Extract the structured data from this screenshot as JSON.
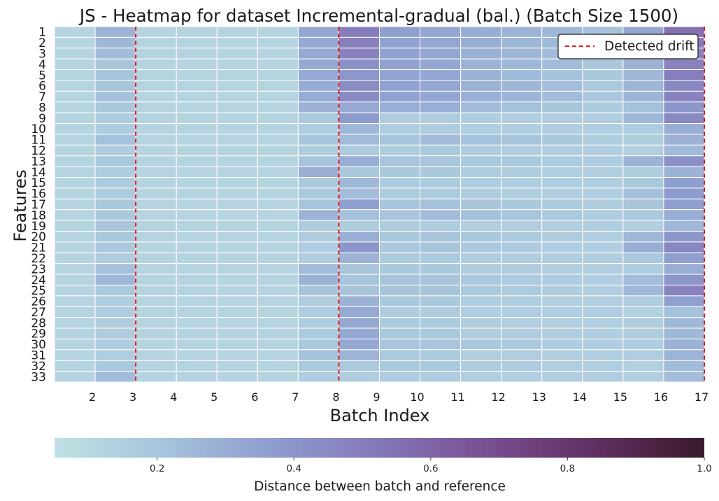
{
  "chart_data": {
    "type": "heatmap",
    "title": "JS - Heatmap for dataset Incremental-gradual (bal.) (Batch Size 1500)",
    "xlabel": "Batch Index",
    "ylabel": "Features",
    "x_tick_labels": [
      "2",
      "3",
      "4",
      "5",
      "6",
      "7",
      "8",
      "9",
      "10",
      "11",
      "12",
      "13",
      "14",
      "15",
      "16",
      "17"
    ],
    "y_tick_labels": [
      "1",
      "2",
      "3",
      "4",
      "5",
      "6",
      "7",
      "8",
      "9",
      "10",
      "11",
      "12",
      "13",
      "14",
      "15",
      "16",
      "17",
      "18",
      "19",
      "20",
      "21",
      "22",
      "23",
      "24",
      "25",
      "26",
      "27",
      "28",
      "29",
      "30",
      "31",
      "32",
      "33"
    ],
    "colorbar": {
      "label": "Distance between batch and reference",
      "min": 0.05,
      "max": 1.0,
      "ticks": [
        "0.2",
        "0.4",
        "0.6",
        "0.8",
        "1.0"
      ],
      "tick_values": [
        0.2,
        0.4,
        0.6,
        0.8,
        1.0
      ],
      "colors": [
        "#c0e0e3",
        "#a7c4dc",
        "#8e9ecf",
        "#8577b8",
        "#784f91",
        "#602f62",
        "#3a1a2c"
      ]
    },
    "drift_lines_batch_index": [
      2.5,
      7.5,
      16.5
    ],
    "legend": {
      "entries": [
        "Detected drift"
      ],
      "placement": "upper right",
      "line_color": "#e31a1c"
    },
    "cell_columns_batch_index": [
      1,
      2,
      3,
      4,
      5,
      6,
      7,
      8,
      9,
      10,
      11,
      12,
      13,
      14,
      15,
      16
    ],
    "values": [
      [
        0.12,
        0.28,
        0.12,
        0.12,
        0.12,
        0.12,
        0.33,
        0.5,
        0.36,
        0.33,
        0.3,
        0.28,
        0.26,
        0.22,
        0.33,
        0.55
      ],
      [
        0.12,
        0.26,
        0.12,
        0.12,
        0.12,
        0.12,
        0.32,
        0.49,
        0.35,
        0.33,
        0.3,
        0.27,
        0.25,
        0.21,
        0.32,
        0.5
      ],
      [
        0.12,
        0.24,
        0.12,
        0.12,
        0.12,
        0.12,
        0.32,
        0.48,
        0.35,
        0.33,
        0.29,
        0.27,
        0.24,
        0.2,
        0.3,
        0.48
      ],
      [
        0.12,
        0.2,
        0.12,
        0.12,
        0.12,
        0.12,
        0.32,
        0.42,
        0.35,
        0.33,
        0.28,
        0.26,
        0.24,
        0.19,
        0.28,
        0.48
      ],
      [
        0.12,
        0.2,
        0.12,
        0.12,
        0.12,
        0.12,
        0.32,
        0.4,
        0.34,
        0.33,
        0.28,
        0.25,
        0.22,
        0.18,
        0.26,
        0.5
      ],
      [
        0.12,
        0.2,
        0.12,
        0.12,
        0.12,
        0.12,
        0.31,
        0.44,
        0.35,
        0.33,
        0.28,
        0.26,
        0.23,
        0.18,
        0.27,
        0.46
      ],
      [
        0.12,
        0.22,
        0.12,
        0.12,
        0.12,
        0.12,
        0.31,
        0.45,
        0.35,
        0.33,
        0.29,
        0.27,
        0.24,
        0.19,
        0.27,
        0.48
      ],
      [
        0.12,
        0.18,
        0.12,
        0.12,
        0.12,
        0.12,
        0.28,
        0.32,
        0.3,
        0.3,
        0.24,
        0.22,
        0.2,
        0.17,
        0.22,
        0.4
      ],
      [
        0.12,
        0.16,
        0.12,
        0.12,
        0.12,
        0.12,
        0.18,
        0.38,
        0.16,
        0.16,
        0.15,
        0.15,
        0.15,
        0.15,
        0.26,
        0.45
      ],
      [
        0.12,
        0.16,
        0.12,
        0.12,
        0.12,
        0.12,
        0.16,
        0.26,
        0.16,
        0.16,
        0.15,
        0.15,
        0.15,
        0.15,
        0.16,
        0.3
      ],
      [
        0.12,
        0.22,
        0.12,
        0.12,
        0.12,
        0.12,
        0.2,
        0.24,
        0.2,
        0.24,
        0.22,
        0.2,
        0.18,
        0.16,
        0.16,
        0.28
      ],
      [
        0.12,
        0.16,
        0.12,
        0.12,
        0.12,
        0.12,
        0.16,
        0.17,
        0.16,
        0.18,
        0.16,
        0.15,
        0.15,
        0.15,
        0.14,
        0.25
      ],
      [
        0.12,
        0.18,
        0.12,
        0.12,
        0.12,
        0.12,
        0.2,
        0.3,
        0.2,
        0.2,
        0.18,
        0.18,
        0.17,
        0.16,
        0.28,
        0.42
      ],
      [
        0.12,
        0.16,
        0.12,
        0.12,
        0.12,
        0.12,
        0.3,
        0.18,
        0.18,
        0.18,
        0.16,
        0.16,
        0.15,
        0.15,
        0.16,
        0.28
      ],
      [
        0.12,
        0.17,
        0.12,
        0.12,
        0.12,
        0.12,
        0.18,
        0.26,
        0.17,
        0.17,
        0.16,
        0.15,
        0.15,
        0.15,
        0.18,
        0.36
      ],
      [
        0.12,
        0.17,
        0.12,
        0.12,
        0.12,
        0.12,
        0.18,
        0.24,
        0.17,
        0.17,
        0.16,
        0.15,
        0.15,
        0.15,
        0.22,
        0.38
      ],
      [
        0.12,
        0.18,
        0.12,
        0.12,
        0.12,
        0.12,
        0.2,
        0.36,
        0.2,
        0.22,
        0.2,
        0.18,
        0.17,
        0.16,
        0.2,
        0.36
      ],
      [
        0.12,
        0.18,
        0.12,
        0.12,
        0.12,
        0.12,
        0.28,
        0.22,
        0.2,
        0.24,
        0.22,
        0.2,
        0.18,
        0.16,
        0.18,
        0.3
      ],
      [
        0.12,
        0.2,
        0.12,
        0.12,
        0.12,
        0.12,
        0.16,
        0.16,
        0.16,
        0.16,
        0.15,
        0.15,
        0.15,
        0.15,
        0.14,
        0.26
      ],
      [
        0.12,
        0.18,
        0.12,
        0.12,
        0.12,
        0.12,
        0.16,
        0.3,
        0.18,
        0.2,
        0.18,
        0.17,
        0.16,
        0.15,
        0.26,
        0.4
      ],
      [
        0.12,
        0.18,
        0.12,
        0.12,
        0.12,
        0.12,
        0.16,
        0.4,
        0.18,
        0.2,
        0.18,
        0.17,
        0.16,
        0.15,
        0.3,
        0.46
      ],
      [
        0.12,
        0.16,
        0.12,
        0.12,
        0.12,
        0.12,
        0.16,
        0.28,
        0.17,
        0.17,
        0.16,
        0.15,
        0.15,
        0.15,
        0.18,
        0.36
      ],
      [
        0.12,
        0.22,
        0.12,
        0.12,
        0.12,
        0.12,
        0.24,
        0.2,
        0.18,
        0.18,
        0.16,
        0.16,
        0.15,
        0.15,
        0.16,
        0.3
      ],
      [
        0.12,
        0.26,
        0.12,
        0.12,
        0.12,
        0.12,
        0.28,
        0.2,
        0.2,
        0.2,
        0.18,
        0.17,
        0.16,
        0.15,
        0.24,
        0.4
      ],
      [
        0.12,
        0.18,
        0.12,
        0.12,
        0.12,
        0.12,
        0.2,
        0.2,
        0.2,
        0.2,
        0.18,
        0.17,
        0.16,
        0.15,
        0.26,
        0.48
      ],
      [
        0.12,
        0.16,
        0.12,
        0.12,
        0.12,
        0.12,
        0.16,
        0.28,
        0.18,
        0.18,
        0.16,
        0.16,
        0.15,
        0.15,
        0.16,
        0.36
      ],
      [
        0.12,
        0.16,
        0.12,
        0.12,
        0.12,
        0.12,
        0.16,
        0.32,
        0.16,
        0.16,
        0.15,
        0.15,
        0.15,
        0.15,
        0.14,
        0.22
      ],
      [
        0.12,
        0.16,
        0.12,
        0.12,
        0.12,
        0.12,
        0.16,
        0.32,
        0.17,
        0.17,
        0.16,
        0.15,
        0.15,
        0.15,
        0.16,
        0.26
      ],
      [
        0.12,
        0.16,
        0.12,
        0.12,
        0.12,
        0.12,
        0.17,
        0.32,
        0.18,
        0.18,
        0.16,
        0.16,
        0.15,
        0.15,
        0.16,
        0.26
      ],
      [
        0.12,
        0.16,
        0.12,
        0.12,
        0.12,
        0.12,
        0.18,
        0.32,
        0.2,
        0.2,
        0.18,
        0.17,
        0.16,
        0.15,
        0.16,
        0.28
      ],
      [
        0.12,
        0.16,
        0.12,
        0.12,
        0.12,
        0.12,
        0.22,
        0.28,
        0.18,
        0.18,
        0.16,
        0.16,
        0.15,
        0.15,
        0.16,
        0.28
      ],
      [
        0.12,
        0.18,
        0.12,
        0.12,
        0.12,
        0.12,
        0.18,
        0.18,
        0.18,
        0.18,
        0.16,
        0.16,
        0.15,
        0.15,
        0.14,
        0.24
      ],
      [
        0.12,
        0.24,
        0.12,
        0.12,
        0.12,
        0.12,
        0.16,
        0.16,
        0.16,
        0.16,
        0.15,
        0.15,
        0.15,
        0.15,
        0.14,
        0.24
      ]
    ]
  }
}
